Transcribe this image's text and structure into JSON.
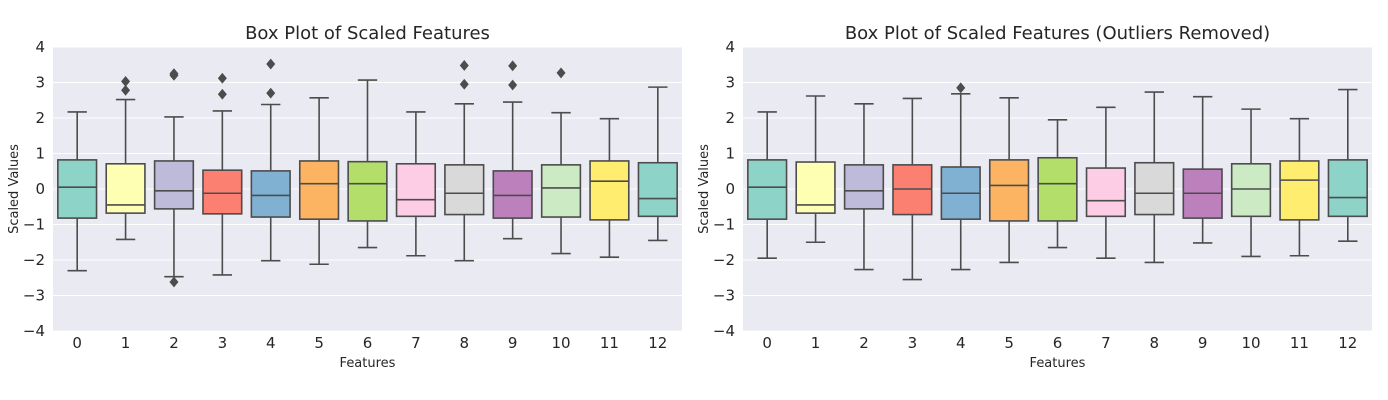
{
  "chart_data": [
    {
      "type": "box",
      "title": "Box Plot of Scaled Features",
      "xlabel": "Features",
      "ylabel": "Scaled Values",
      "ylim": [
        -4,
        4
      ],
      "yticks": [
        -4,
        -3,
        -2,
        -1,
        0,
        1,
        2,
        3,
        4
      ],
      "grid": true,
      "categories": [
        "0",
        "1",
        "2",
        "3",
        "4",
        "5",
        "6",
        "7",
        "8",
        "9",
        "10",
        "11",
        "12"
      ],
      "boxes": [
        {
          "q1": -0.82,
          "median": 0.05,
          "q3": 0.82,
          "whisker_low": -2.3,
          "whisker_high": 2.17,
          "outliers": []
        },
        {
          "q1": -0.68,
          "median": -0.45,
          "q3": 0.71,
          "whisker_low": -1.42,
          "whisker_high": 2.52,
          "outliers": [
            2.78,
            3.03
          ]
        },
        {
          "q1": -0.56,
          "median": -0.05,
          "q3": 0.79,
          "whisker_low": -2.47,
          "whisker_high": 2.03,
          "outliers": [
            3.2,
            3.25,
            -2.62
          ]
        },
        {
          "q1": -0.7,
          "median": -0.12,
          "q3": 0.53,
          "whisker_low": -2.42,
          "whisker_high": 2.2,
          "outliers": [
            2.67,
            3.12
          ]
        },
        {
          "q1": -0.79,
          "median": -0.18,
          "q3": 0.51,
          "whisker_low": -2.02,
          "whisker_high": 2.38,
          "outliers": [
            2.7,
            3.52
          ]
        },
        {
          "q1": -0.85,
          "median": 0.15,
          "q3": 0.79,
          "whisker_low": -2.12,
          "whisker_high": 2.57,
          "outliers": []
        },
        {
          "q1": -0.9,
          "median": 0.15,
          "q3": 0.77,
          "whisker_low": -1.65,
          "whisker_high": 3.07,
          "outliers": []
        },
        {
          "q1": -0.77,
          "median": -0.3,
          "q3": 0.71,
          "whisker_low": -1.88,
          "whisker_high": 2.17,
          "outliers": []
        },
        {
          "q1": -0.72,
          "median": -0.12,
          "q3": 0.68,
          "whisker_low": -2.02,
          "whisker_high": 2.4,
          "outliers": [
            2.95,
            3.48
          ]
        },
        {
          "q1": -0.82,
          "median": -0.18,
          "q3": 0.51,
          "whisker_low": -1.4,
          "whisker_high": 2.45,
          "outliers": [
            2.93,
            3.47
          ]
        },
        {
          "q1": -0.79,
          "median": 0.03,
          "q3": 0.68,
          "whisker_low": -1.82,
          "whisker_high": 2.15,
          "outliers": [
            3.27
          ]
        },
        {
          "q1": -0.87,
          "median": 0.22,
          "q3": 0.79,
          "whisker_low": -1.92,
          "whisker_high": 1.98,
          "outliers": []
        },
        {
          "q1": -0.77,
          "median": -0.27,
          "q3": 0.74,
          "whisker_low": -1.45,
          "whisker_high": 2.87,
          "outliers": []
        }
      ]
    },
    {
      "type": "box",
      "title": "Box Plot of Scaled Features (Outliers Removed)",
      "xlabel": "Features",
      "ylabel": "Scaled Values",
      "ylim": [
        -4,
        4
      ],
      "yticks": [
        -4,
        -3,
        -2,
        -1,
        0,
        1,
        2,
        3,
        4
      ],
      "grid": true,
      "categories": [
        "0",
        "1",
        "2",
        "3",
        "4",
        "5",
        "6",
        "7",
        "8",
        "9",
        "10",
        "11",
        "12"
      ],
      "boxes": [
        {
          "q1": -0.85,
          "median": 0.05,
          "q3": 0.82,
          "whisker_low": -1.95,
          "whisker_high": 2.17,
          "outliers": []
        },
        {
          "q1": -0.68,
          "median": -0.45,
          "q3": 0.76,
          "whisker_low": -1.5,
          "whisker_high": 2.62,
          "outliers": []
        },
        {
          "q1": -0.56,
          "median": -0.05,
          "q3": 0.68,
          "whisker_low": -2.27,
          "whisker_high": 2.4,
          "outliers": []
        },
        {
          "q1": -0.72,
          "median": 0.0,
          "q3": 0.68,
          "whisker_low": -2.55,
          "whisker_high": 2.55,
          "outliers": []
        },
        {
          "q1": -0.85,
          "median": -0.12,
          "q3": 0.62,
          "whisker_low": -2.27,
          "whisker_high": 2.68,
          "outliers": [
            2.85
          ]
        },
        {
          "q1": -0.9,
          "median": 0.1,
          "q3": 0.82,
          "whisker_low": -2.07,
          "whisker_high": 2.57,
          "outliers": []
        },
        {
          "q1": -0.9,
          "median": 0.15,
          "q3": 0.88,
          "whisker_low": -1.65,
          "whisker_high": 1.95,
          "outliers": []
        },
        {
          "q1": -0.77,
          "median": -0.33,
          "q3": 0.59,
          "whisker_low": -1.95,
          "whisker_high": 2.3,
          "outliers": []
        },
        {
          "q1": -0.72,
          "median": -0.12,
          "q3": 0.74,
          "whisker_low": -2.07,
          "whisker_high": 2.73,
          "outliers": []
        },
        {
          "q1": -0.82,
          "median": -0.12,
          "q3": 0.56,
          "whisker_low": -1.52,
          "whisker_high": 2.6,
          "outliers": []
        },
        {
          "q1": -0.77,
          "median": 0.0,
          "q3": 0.71,
          "whisker_low": -1.9,
          "whisker_high": 2.25,
          "outliers": []
        },
        {
          "q1": -0.87,
          "median": 0.25,
          "q3": 0.79,
          "whisker_low": -1.88,
          "whisker_high": 1.98,
          "outliers": []
        },
        {
          "q1": -0.77,
          "median": -0.24,
          "q3": 0.82,
          "whisker_low": -1.47,
          "whisker_high": 2.8,
          "outliers": []
        }
      ]
    }
  ],
  "palette": [
    "#8dd3c7",
    "#ffffb3",
    "#bebada",
    "#fb8072",
    "#80b1d3",
    "#fdb462",
    "#b3de69",
    "#fccde5",
    "#d9d9d9",
    "#bc80bd",
    "#ccebc5",
    "#ffed6f",
    "#8dd3c7"
  ],
  "style": {
    "panel_background": "#eaeaf2",
    "grid_color": "#ffffff",
    "line_color": "#4c4c4c"
  }
}
